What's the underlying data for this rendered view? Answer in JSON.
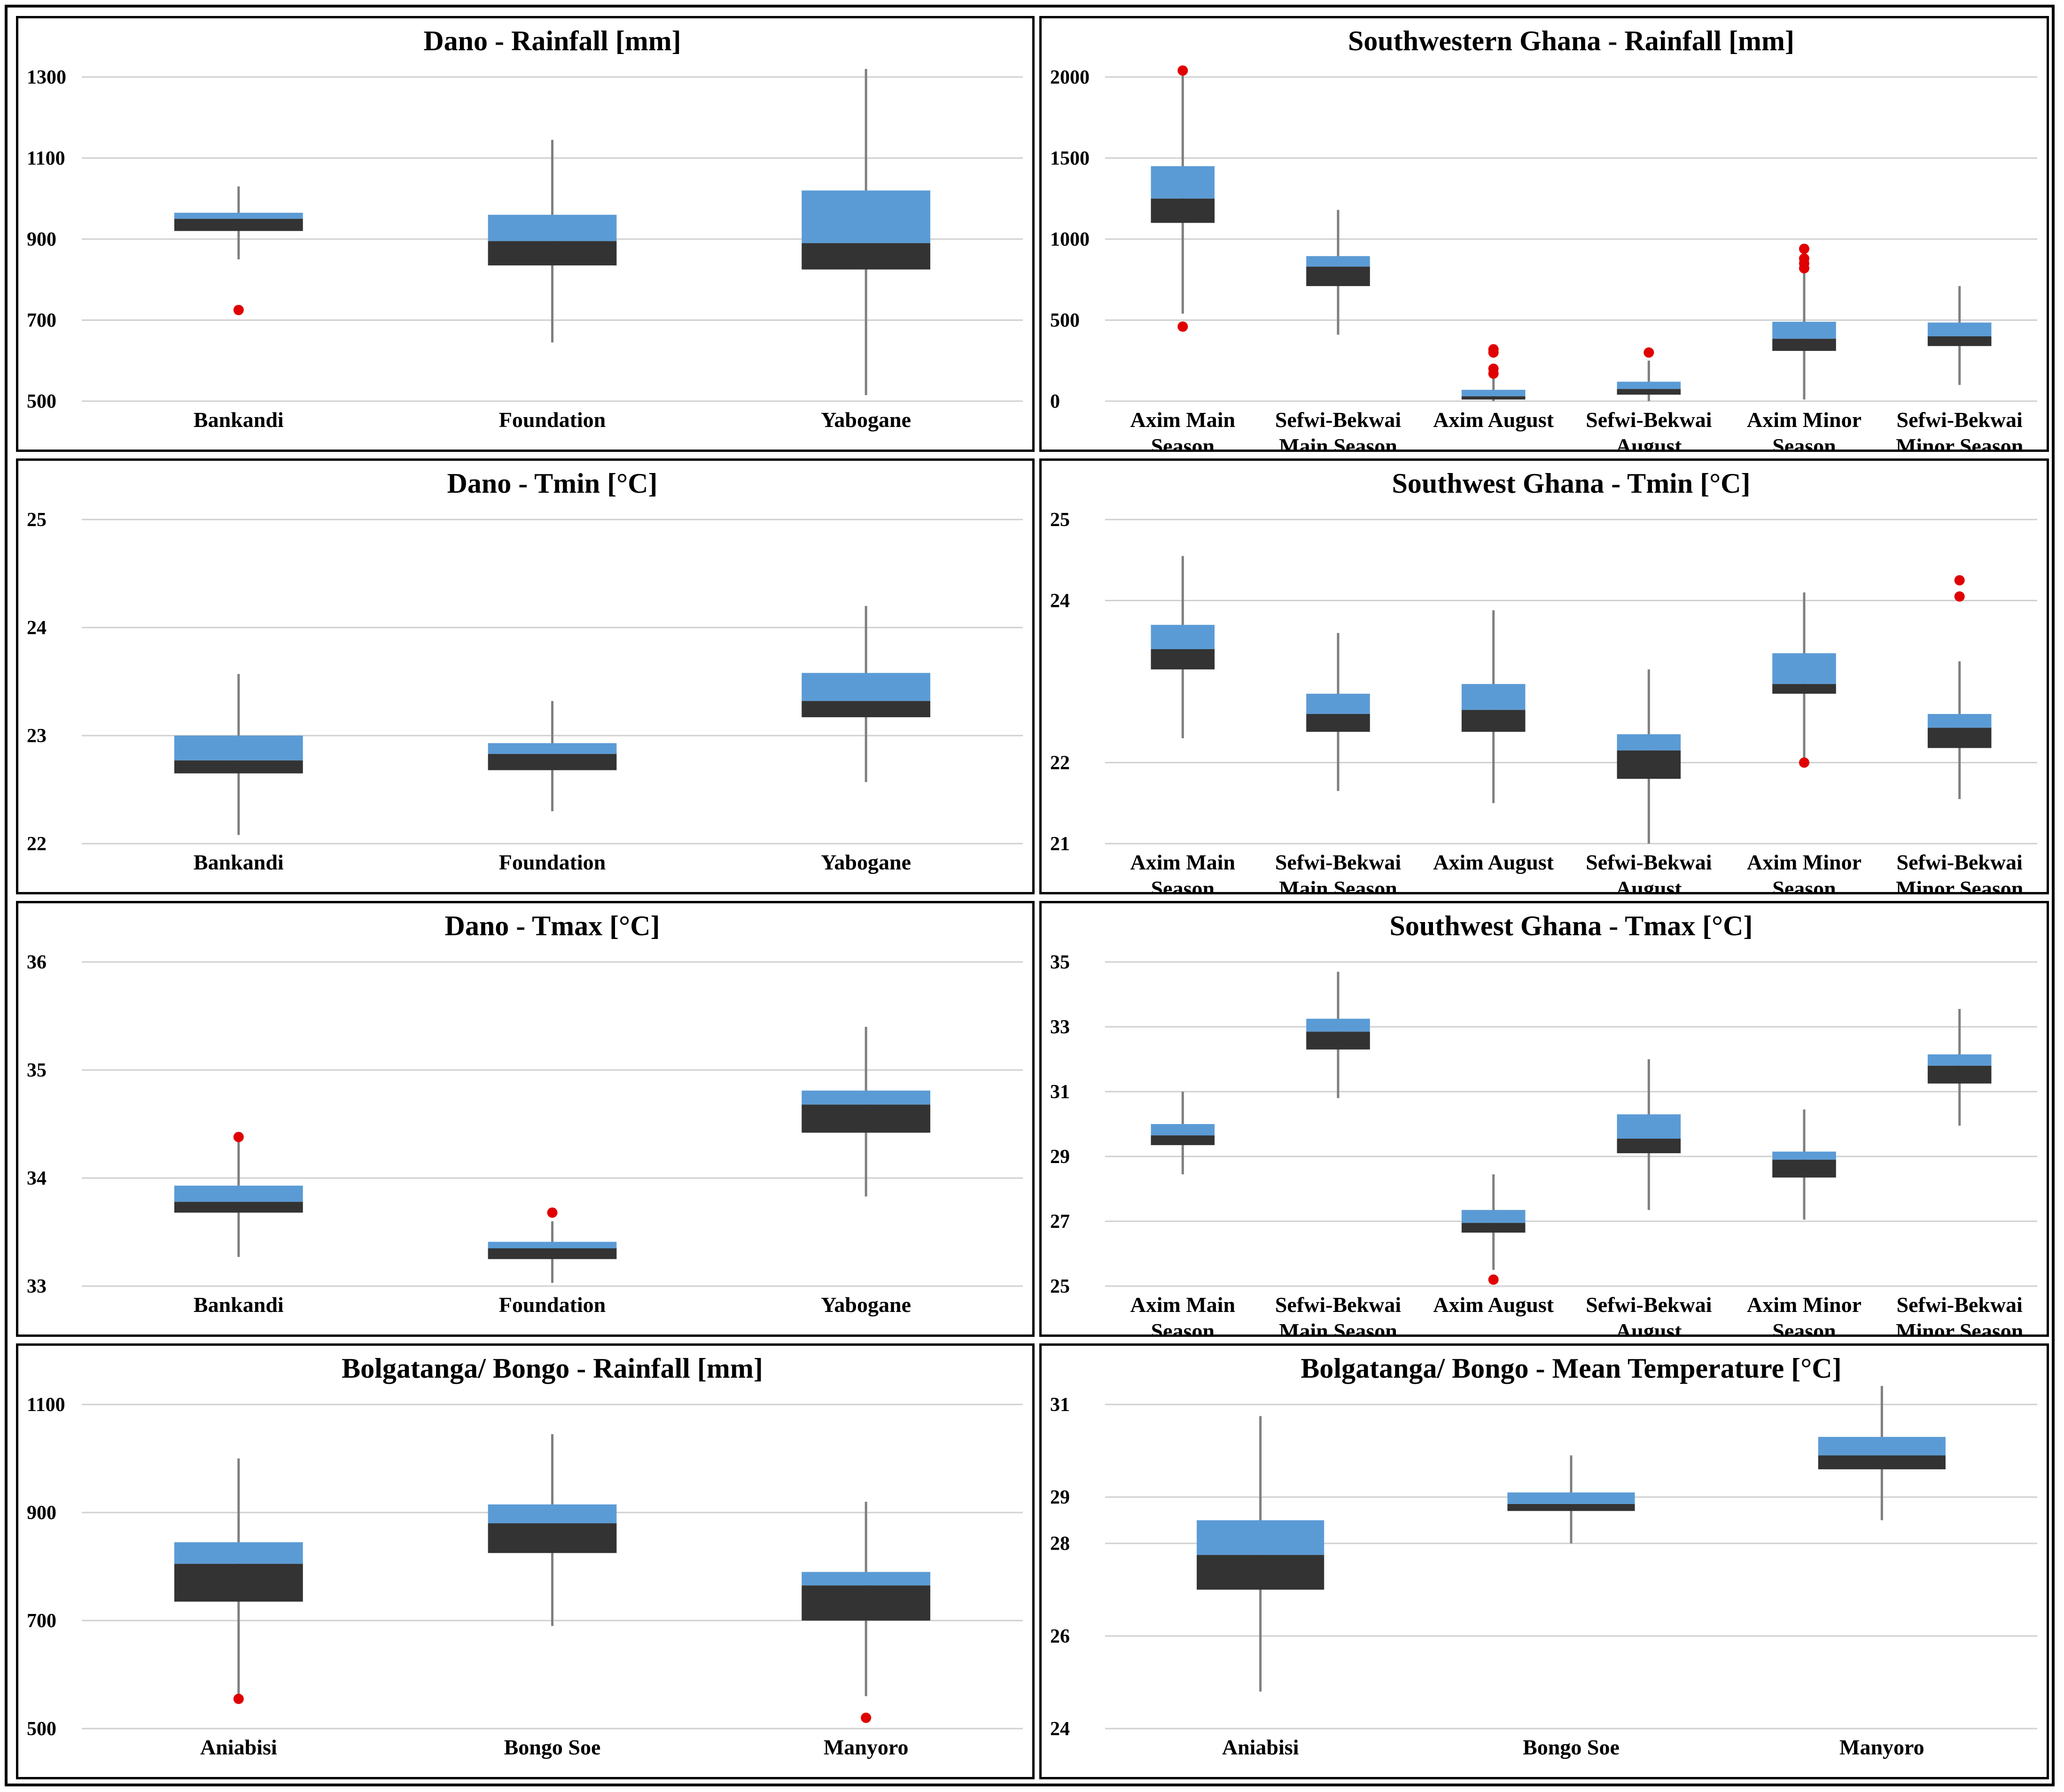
{
  "colors": {
    "upper_box": "#5b9bd5",
    "lower_box": "#333333",
    "outlier": "#e00000",
    "whisker": "#7f7f7f",
    "grid": "#d0d0d0"
  },
  "chart_data": [
    {
      "id": "dano-rainfall",
      "type": "boxplot",
      "title": "Dano - Rainfall [mm]",
      "xlabel": "",
      "ylabel": "",
      "ylim": [
        500,
        1300
      ],
      "yticks": [
        "500",
        "700",
        "900",
        "1100",
        "1300"
      ],
      "categories": [
        [
          "Bankandi"
        ],
        [
          "Foundation"
        ],
        [
          "Yabogane"
        ]
      ],
      "boxes": [
        {
          "min": 850,
          "q1": 920,
          "median": 950,
          "q3": 965,
          "max": 1030,
          "outliers": [
            725
          ]
        },
        {
          "min": 645,
          "q1": 835,
          "median": 895,
          "q3": 960,
          "max": 1145,
          "outliers": []
        },
        {
          "min": 515,
          "q1": 825,
          "median": 890,
          "q3": 1020,
          "max": 1320,
          "outliers": []
        }
      ]
    },
    {
      "id": "sw-ghana-rainfall",
      "type": "boxplot",
      "title": "Southwestern Ghana - Rainfall [mm]",
      "xlabel": "",
      "ylabel": "",
      "ylim": [
        0,
        2000
      ],
      "yticks": [
        "0",
        "500",
        "1000",
        "1500",
        "2000"
      ],
      "categories": [
        [
          "Axim Main",
          "Season"
        ],
        [
          "Sefwi-Bekwai",
          "Main Season"
        ],
        [
          "Axim August"
        ],
        [
          "Sefwi-Bekwai",
          "August"
        ],
        [
          "Axim Minor",
          "Season"
        ],
        [
          "Sefwi-Bekwai",
          "Minor Season"
        ]
      ],
      "boxes": [
        {
          "min": 540,
          "q1": 1100,
          "median": 1250,
          "q3": 1450,
          "max": 2020,
          "outliers": [
            460,
            2040
          ]
        },
        {
          "min": 410,
          "q1": 710,
          "median": 830,
          "q3": 895,
          "max": 1180,
          "outliers": []
        },
        {
          "min": 0,
          "q1": 10,
          "median": 30,
          "q3": 70,
          "max": 150,
          "outliers": [
            170,
            200,
            300,
            320
          ]
        },
        {
          "min": 0,
          "q1": 40,
          "median": 75,
          "q3": 120,
          "max": 250,
          "outliers": [
            300
          ]
        },
        {
          "min": 10,
          "q1": 310,
          "median": 385,
          "q3": 490,
          "max": 790,
          "outliers": [
            820,
            850,
            880,
            940
          ]
        },
        {
          "min": 100,
          "q1": 340,
          "median": 400,
          "q3": 485,
          "max": 710,
          "outliers": []
        }
      ]
    },
    {
      "id": "dano-tmin",
      "type": "boxplot",
      "title": "Dano - Tmin [°C]",
      "xlabel": "",
      "ylabel": "",
      "ylim": [
        22,
        25
      ],
      "yticks": [
        "22",
        "23",
        "24",
        "25"
      ],
      "categories": [
        [
          "Bankandi"
        ],
        [
          "Foundation"
        ],
        [
          "Yabogane"
        ]
      ],
      "boxes": [
        {
          "min": 22.08,
          "q1": 22.65,
          "median": 22.77,
          "q3": 23.0,
          "max": 23.57,
          "outliers": []
        },
        {
          "min": 22.3,
          "q1": 22.68,
          "median": 22.83,
          "q3": 22.93,
          "max": 23.32,
          "outliers": []
        },
        {
          "min": 22.57,
          "q1": 23.17,
          "median": 23.32,
          "q3": 23.58,
          "max": 24.2,
          "outliers": []
        }
      ]
    },
    {
      "id": "sw-ghana-tmin",
      "type": "boxplot",
      "title": "Southwest Ghana - Tmin [°C]",
      "xlabel": "",
      "ylabel": "",
      "ylim": [
        21,
        25
      ],
      "yticks": [
        "21",
        "22",
        "24",
        "25"
      ],
      "categories": [
        [
          "Axim Main",
          "Season"
        ],
        [
          "Sefwi-Bekwai",
          "Main Season"
        ],
        [
          "Axim August"
        ],
        [
          "Sefwi-Bekwai",
          "August"
        ],
        [
          "Axim Minor",
          "Season"
        ],
        [
          "Sefwi-Bekwai",
          "Minor Season"
        ]
      ],
      "boxes": [
        {
          "min": 22.3,
          "q1": 23.15,
          "median": 23.4,
          "q3": 23.7,
          "max": 24.55,
          "outliers": []
        },
        {
          "min": 21.65,
          "q1": 22.38,
          "median": 22.6,
          "q3": 22.85,
          "max": 23.6,
          "outliers": []
        },
        {
          "min": 21.5,
          "q1": 22.38,
          "median": 22.65,
          "q3": 22.97,
          "max": 23.88,
          "outliers": []
        },
        {
          "min": 21.0,
          "q1": 21.8,
          "median": 22.15,
          "q3": 22.35,
          "max": 23.15,
          "outliers": []
        },
        {
          "min": 22.05,
          "q1": 22.85,
          "median": 22.97,
          "q3": 23.35,
          "max": 24.1,
          "outliers": [
            22.0
          ]
        },
        {
          "min": 21.55,
          "q1": 22.18,
          "median": 22.43,
          "q3": 22.6,
          "max": 23.25,
          "outliers": [
            24.05,
            24.25
          ]
        }
      ]
    },
    {
      "id": "dano-tmax",
      "type": "boxplot",
      "title": "Dano - Tmax [°C]",
      "xlabel": "",
      "ylabel": "",
      "ylim": [
        33,
        36
      ],
      "yticks": [
        "33",
        "34",
        "35",
        "36"
      ],
      "categories": [
        [
          "Bankandi"
        ],
        [
          "Foundation"
        ],
        [
          "Yabogane"
        ]
      ],
      "boxes": [
        {
          "min": 33.27,
          "q1": 33.68,
          "median": 33.78,
          "q3": 33.93,
          "max": 34.35,
          "outliers": [
            34.38
          ]
        },
        {
          "min": 33.03,
          "q1": 33.25,
          "median": 33.35,
          "q3": 33.41,
          "max": 33.6,
          "outliers": [
            33.68
          ]
        },
        {
          "min": 33.83,
          "q1": 34.42,
          "median": 34.68,
          "q3": 34.81,
          "max": 35.4,
          "outliers": []
        }
      ]
    },
    {
      "id": "sw-ghana-tmax",
      "type": "boxplot",
      "title": "Southwest Ghana - Tmax [°C]",
      "xlabel": "",
      "ylabel": "",
      "ylim": [
        25,
        35
      ],
      "yticks": [
        "25",
        "27",
        "29",
        "31",
        "33",
        "35"
      ],
      "categories": [
        [
          "Axim Main",
          "Season"
        ],
        [
          "Sefwi-Bekwai",
          "Main Season"
        ],
        [
          "Axim August"
        ],
        [
          "Sefwi-Bekwai",
          "August"
        ],
        [
          "Axim Minor",
          "Season"
        ],
        [
          "Sefwi-Bekwai",
          "Minor Season"
        ]
      ],
      "boxes": [
        {
          "min": 28.45,
          "q1": 29.35,
          "median": 29.65,
          "q3": 30.0,
          "max": 31.0,
          "outliers": []
        },
        {
          "min": 30.8,
          "q1": 32.3,
          "median": 32.85,
          "q3": 33.25,
          "max": 34.7,
          "outliers": []
        },
        {
          "min": 25.5,
          "q1": 26.65,
          "median": 26.95,
          "q3": 27.35,
          "max": 28.45,
          "outliers": [
            25.2
          ]
        },
        {
          "min": 27.35,
          "q1": 29.1,
          "median": 29.55,
          "q3": 30.3,
          "max": 32.0,
          "outliers": []
        },
        {
          "min": 27.05,
          "q1": 28.35,
          "median": 28.9,
          "q3": 29.15,
          "max": 30.45,
          "outliers": []
        },
        {
          "min": 29.95,
          "q1": 31.25,
          "median": 31.8,
          "q3": 32.15,
          "max": 33.55,
          "outliers": []
        }
      ]
    },
    {
      "id": "bolgatanga-rainfall",
      "type": "boxplot",
      "title": "Bolgatanga/ Bongo - Rainfall [mm]",
      "xlabel": "",
      "ylabel": "",
      "ylim": [
        500,
        1100
      ],
      "yticks": [
        "500",
        "700",
        "900",
        "1100"
      ],
      "categories": [
        [
          "Aniabisi"
        ],
        [
          "Bongo Soe"
        ],
        [
          "Manyoro"
        ]
      ],
      "boxes": [
        {
          "min": 560,
          "q1": 735,
          "median": 805,
          "q3": 845,
          "max": 1000,
          "outliers": [
            555
          ]
        },
        {
          "min": 690,
          "q1": 825,
          "median": 880,
          "q3": 915,
          "max": 1045,
          "outliers": []
        },
        {
          "min": 560,
          "q1": 700,
          "median": 765,
          "q3": 790,
          "max": 920,
          "outliers": [
            520
          ]
        }
      ]
    },
    {
      "id": "bolgatanga-mean-temp",
      "type": "boxplot",
      "title": "Bolgatanga/ Bongo - Mean Temperature [°C]",
      "xlabel": "",
      "ylabel": "",
      "ylim": [
        24,
        31
      ],
      "yticks": [
        "24",
        "26",
        "28",
        "29",
        "31"
      ],
      "categories": [
        [
          "Aniabisi"
        ],
        [
          "Bongo Soe"
        ],
        [
          "Manyoro"
        ]
      ],
      "boxes": [
        {
          "min": 24.8,
          "q1": 27.0,
          "median": 27.75,
          "q3": 28.5,
          "max": 30.75,
          "outliers": []
        },
        {
          "min": 28.0,
          "q1": 28.7,
          "median": 28.85,
          "q3": 29.1,
          "max": 29.9,
          "outliers": []
        },
        {
          "min": 28.5,
          "q1": 29.6,
          "median": 29.9,
          "q3": 30.3,
          "max": 31.4,
          "outliers": []
        }
      ]
    }
  ]
}
